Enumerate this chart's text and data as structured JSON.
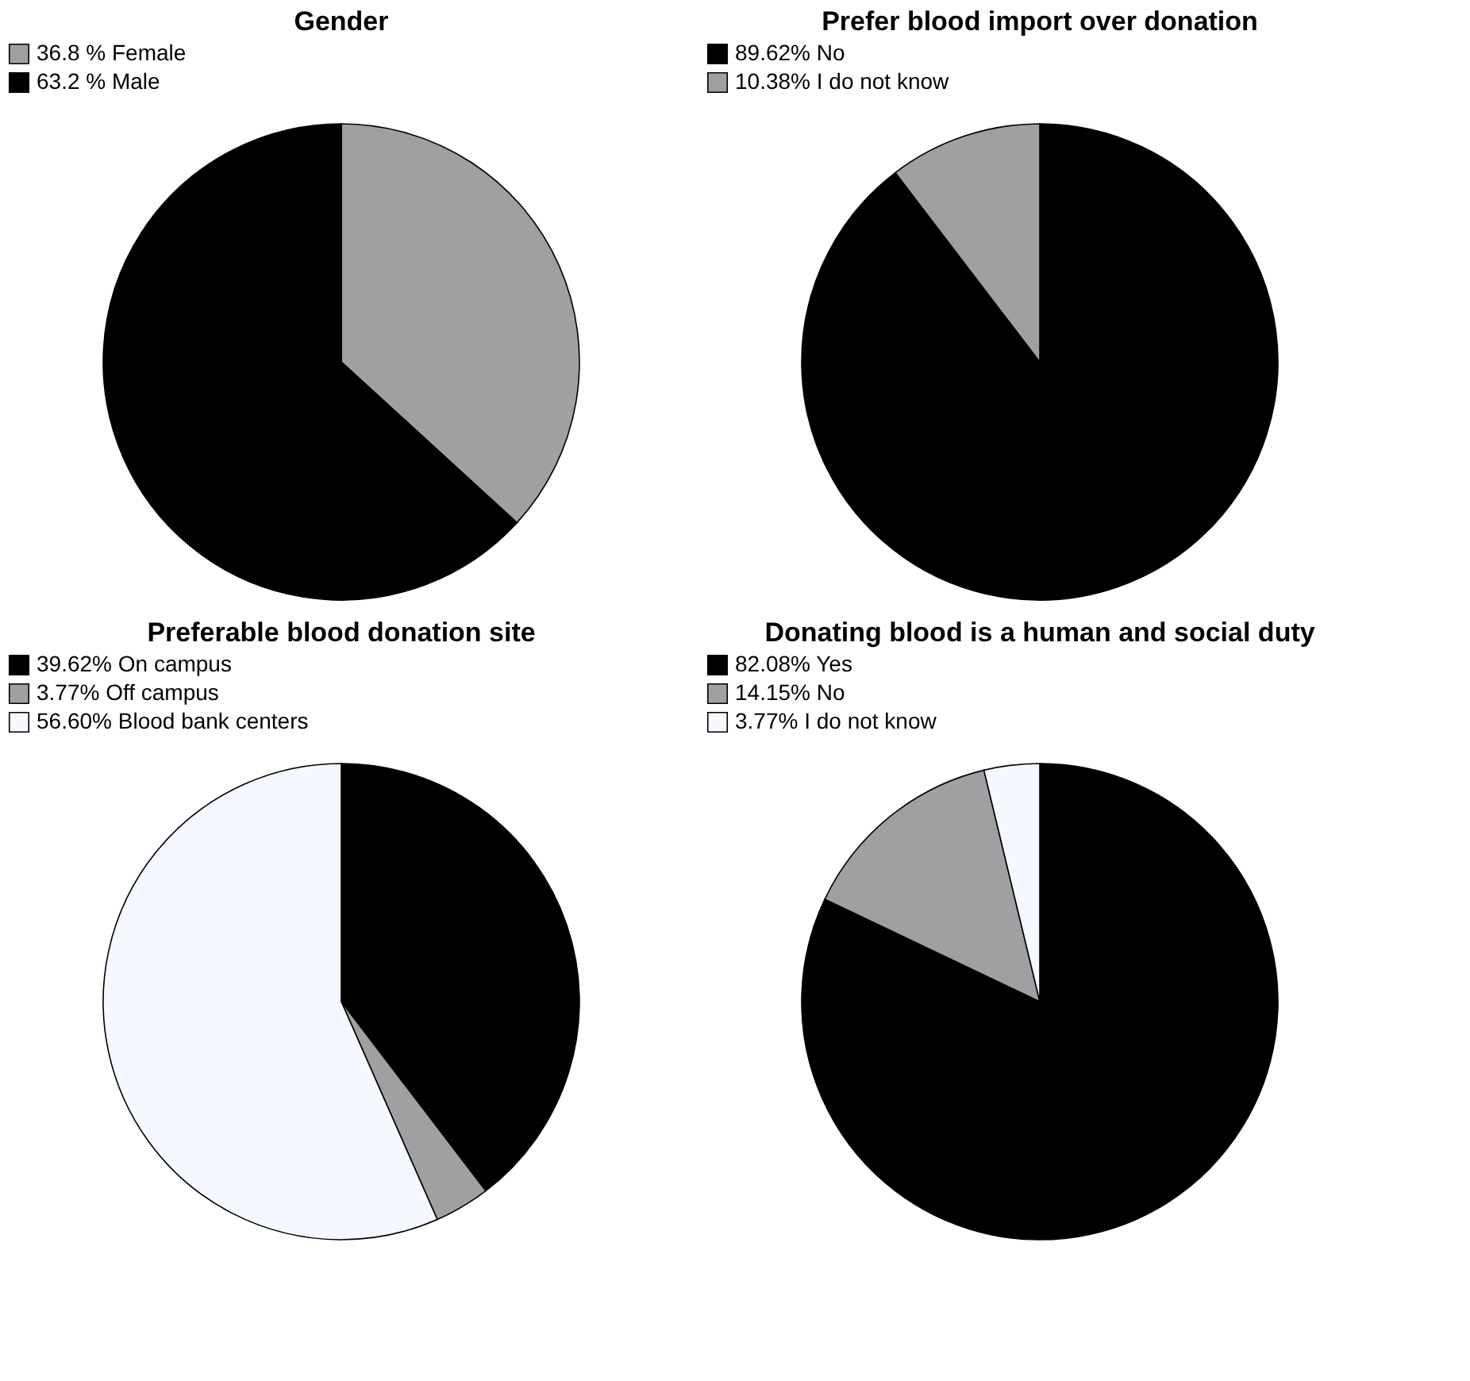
{
  "chart_data": [
    {
      "type": "pie",
      "title": "Gender",
      "categories": [
        "Female",
        "Male"
      ],
      "values": [
        36.8,
        63.2
      ],
      "value_labels": [
        "36.8 %",
        "63.2 %"
      ],
      "colors": [
        "#a0a0a2",
        "#000000"
      ],
      "legend": "top"
    },
    {
      "type": "pie",
      "title": "Prefer blood import over donation",
      "categories": [
        "No",
        "I do not know"
      ],
      "values": [
        89.62,
        10.38
      ],
      "value_labels": [
        "89.62%",
        "10.38%"
      ],
      "colors": [
        "#000000",
        "#a0a0a2"
      ],
      "legend": "top"
    },
    {
      "type": "pie",
      "title": "Preferable blood donation site",
      "categories": [
        "On campus",
        "Off campus",
        "Blood bank centers"
      ],
      "values": [
        39.62,
        3.77,
        56.6
      ],
      "value_labels": [
        "39.62%",
        "3.77%",
        "56.60%"
      ],
      "colors": [
        "#000000",
        "#a0a0a2",
        "#f5f8ff"
      ],
      "legend": "top"
    },
    {
      "type": "pie",
      "title": "Donating blood is a human and social duty",
      "categories": [
        "Yes",
        "No",
        "I do not know"
      ],
      "values": [
        82.08,
        14.15,
        3.77
      ],
      "value_labels": [
        "82.08%",
        "14.15%",
        "3.77%"
      ],
      "colors": [
        "#000000",
        "#a0a0a2",
        "#f5f8ff"
      ],
      "legend": "top"
    }
  ]
}
